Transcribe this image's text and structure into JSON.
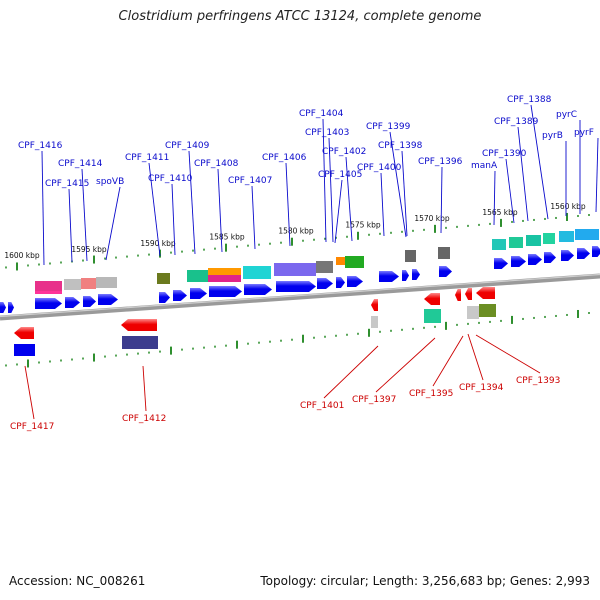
{
  "title": "Clostridium perfringens ATCC 13124, complete genome",
  "footer": {
    "accession": "Accession: NC_008261",
    "summary": "Topology: circular; Length: 3,256,683 bp; Genes: 2,993"
  },
  "colors": {
    "forward_label": "#0a0acc",
    "reverse_label": "#cc0000",
    "forward_arrow": "#0000ee",
    "reverse_arrow": "#ee0000",
    "backbone": "#8a8a8a",
    "tick": "#2f8f2f"
  },
  "kbp_labels": [
    "1600 kbp",
    "1595 kbp",
    "1590 kbp",
    "1585 kbp",
    "1580 kbp",
    "1575 kbp",
    "1570 kbp",
    "1565 kbp",
    "1560 kbp"
  ],
  "forward_labels": [
    "CPF_1416",
    "CPF_1415",
    "CPF_1414",
    "spoVB",
    "CPF_1411",
    "CPF_1410",
    "CPF_1409",
    "CPF_1408",
    "CPF_1407",
    "CPF_1406",
    "CPF_1405",
    "CPF_1404",
    "CPF_1403",
    "CPF_1402",
    "CPF_1399",
    "CPF_1398",
    "CPF_1400",
    "CPF_1396",
    "CPF_1390",
    "manA",
    "CPF_1389",
    "CPF_1388",
    "pyrB",
    "pyrC",
    "pyrF"
  ],
  "reverse_labels": [
    "CPF_1417",
    "CPF_1412",
    "CPF_1401",
    "CPF_1397",
    "CPF_1395",
    "CPF_1394",
    "CPF_1393"
  ]
}
